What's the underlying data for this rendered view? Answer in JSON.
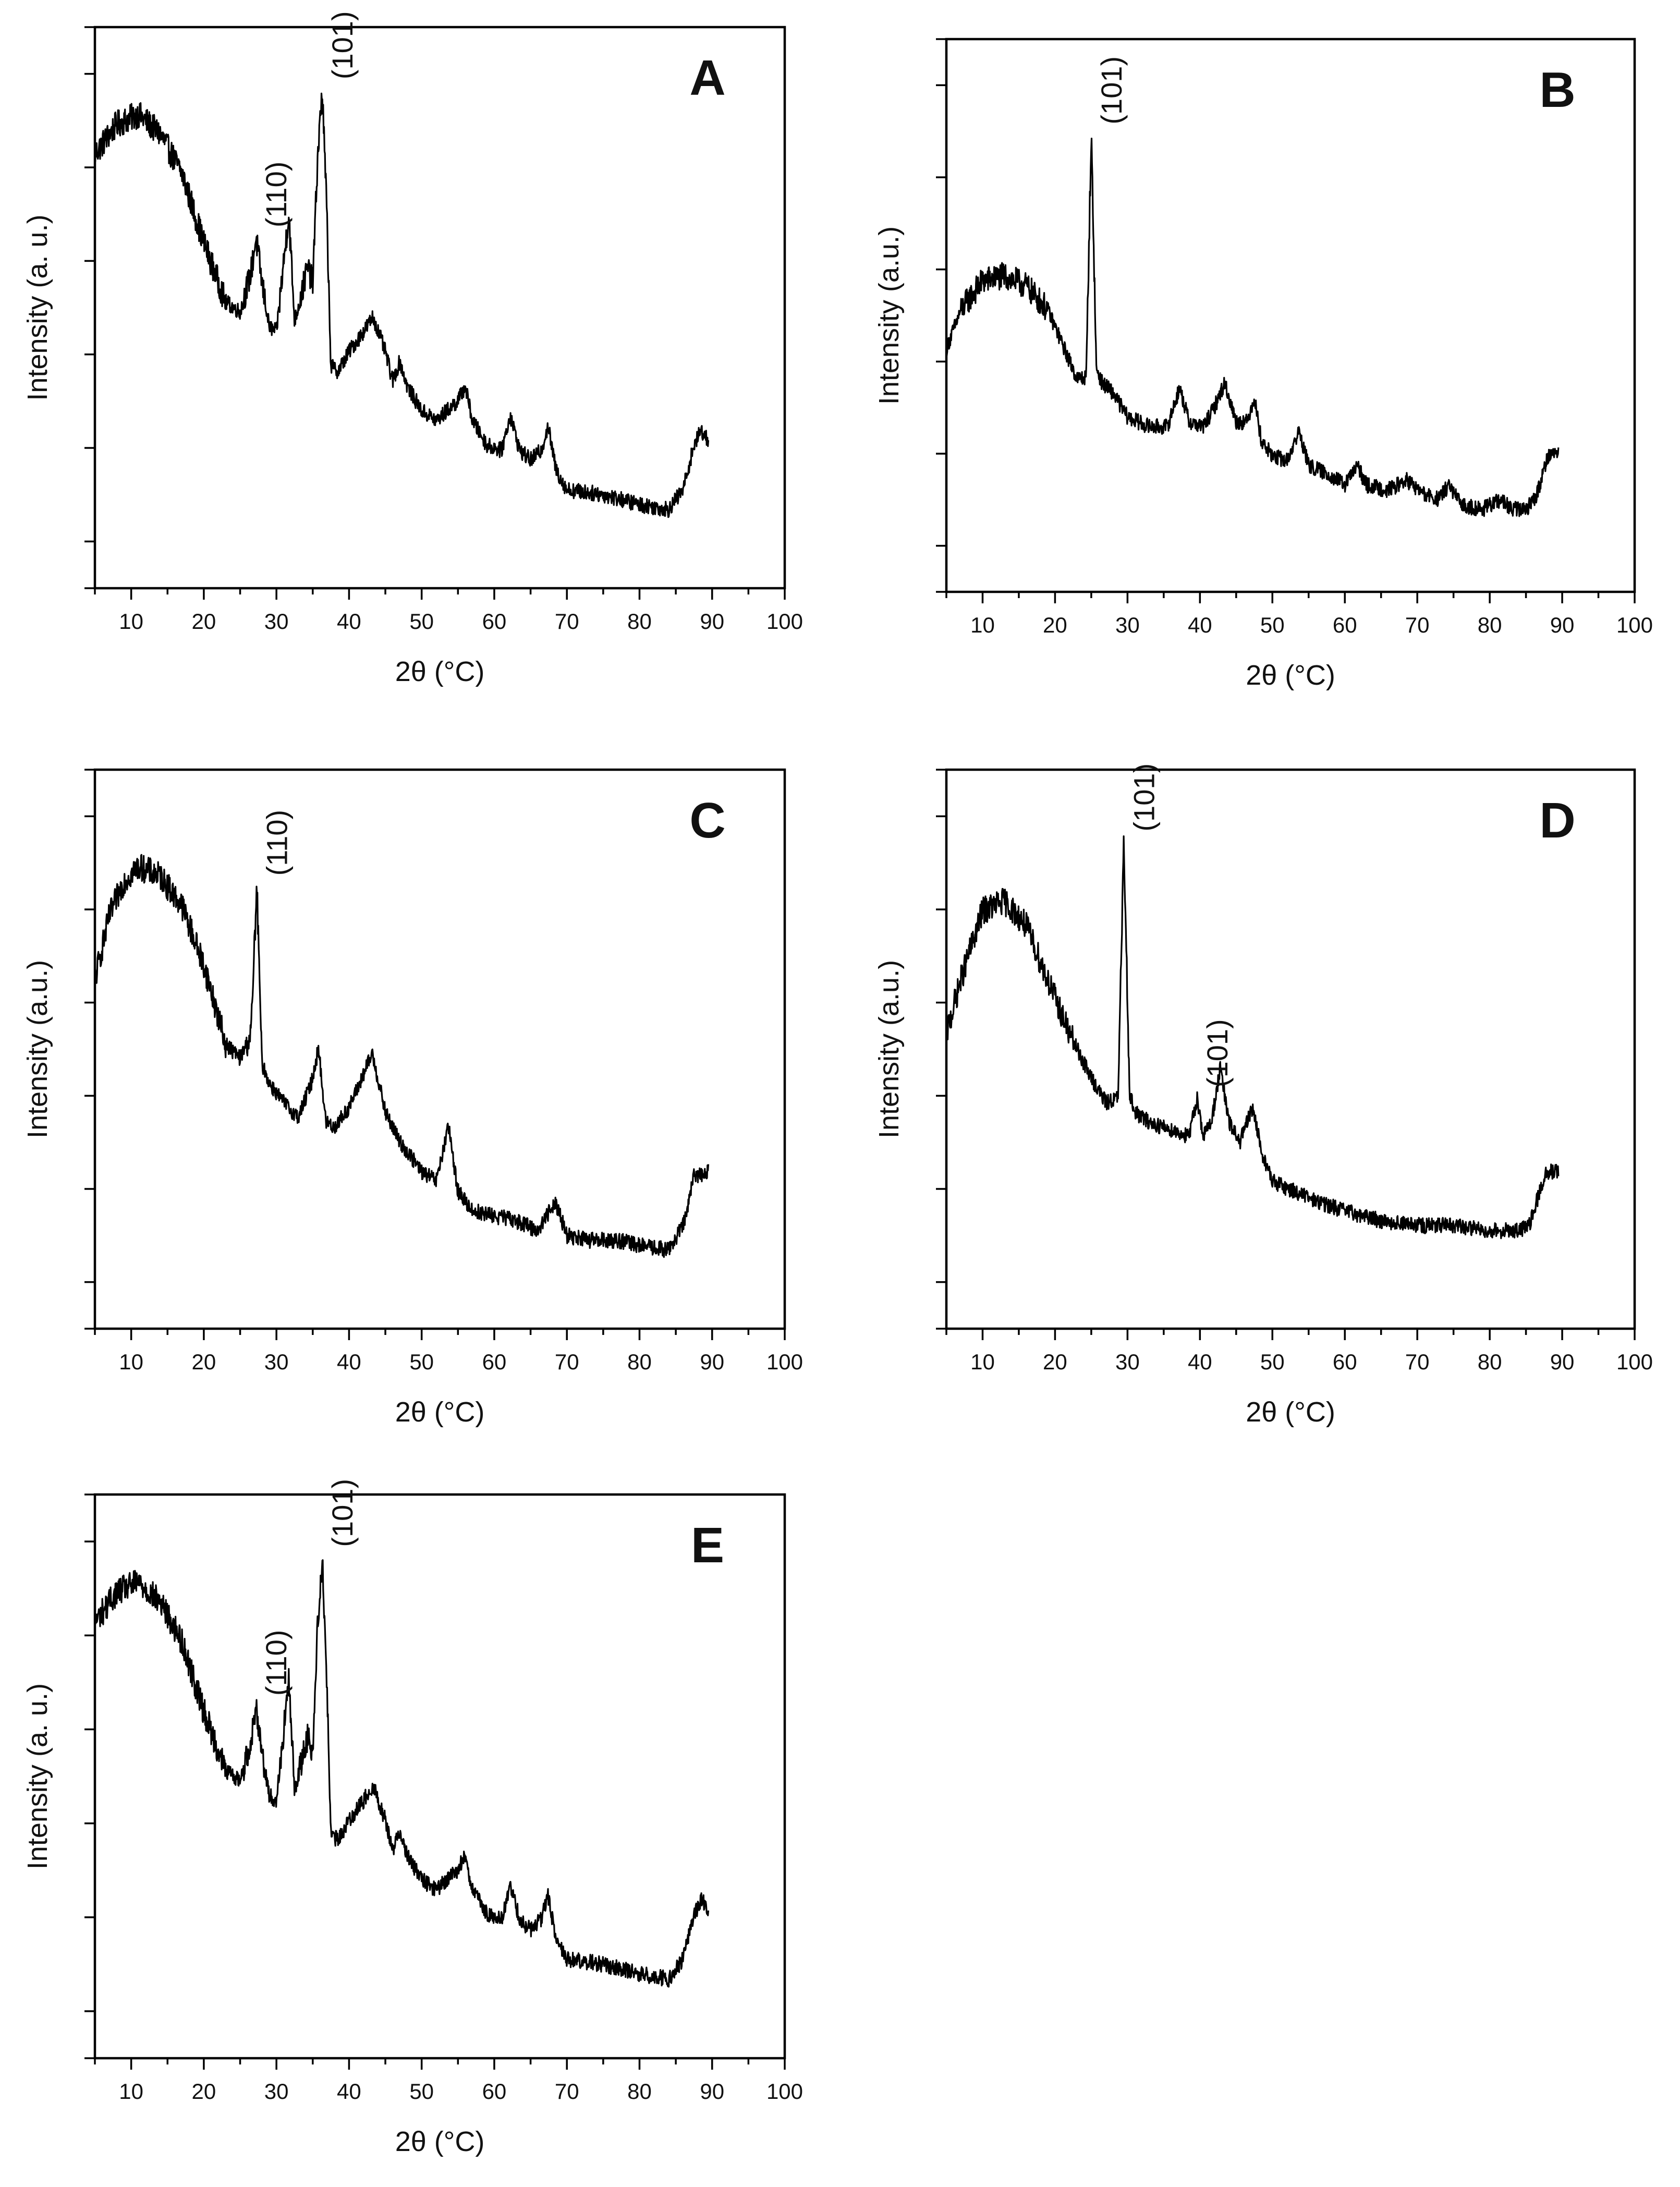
{
  "figure": {
    "background": "#ffffff",
    "line_color": "#000000"
  },
  "chart_data": [
    {
      "id": "A",
      "type": "line",
      "panel_label": "A",
      "xlabel": "2θ (°C)",
      "ylabel": "Intensity (a. u.)",
      "xlim": [
        5,
        100
      ],
      "ylim": [
        0,
        100
      ],
      "xticks": [
        "10",
        "20",
        "30",
        "40",
        "50",
        "60",
        "70",
        "80",
        "90",
        "100"
      ],
      "y_tick_labels": false,
      "series": [
        {
          "name": "A",
          "x": [
            5,
            8,
            11,
            14,
            17,
            20,
            23,
            25,
            26.5,
            27.2,
            28,
            29,
            30,
            31,
            31.7,
            32.5,
            33.5,
            34.3,
            35,
            35.7,
            36.3,
            36.9,
            37.5,
            38.5,
            40,
            42,
            43.3,
            45,
            46,
            47,
            48,
            50,
            52,
            53.5,
            55,
            56,
            57,
            59,
            61,
            62.2,
            63.5,
            65,
            66.5,
            67.4,
            68.5,
            70,
            75,
            80,
            84,
            86,
            87.5,
            88.5,
            89.5
          ],
          "y": [
            80,
            86,
            88,
            84,
            76,
            62,
            50,
            48,
            56,
            63,
            54,
            45,
            44,
            58,
            68,
            46,
            52,
            57,
            54,
            80,
            93,
            70,
            37,
            36,
            40,
            44,
            47,
            40,
            34,
            38,
            33,
            28,
            26,
            28,
            30,
            33,
            26,
            21,
            20,
            27,
            20,
            18,
            20,
            25,
            16,
            12,
            11,
            9,
            8,
            12,
            21,
            24,
            22
          ]
        }
      ],
      "annotations": [
        {
          "text": "(110)",
          "x": 27.2
        },
        {
          "text": "(101)",
          "x": 36.3
        }
      ]
    },
    {
      "id": "B",
      "type": "line",
      "panel_label": "B",
      "xlabel": "2θ (°C)",
      "ylabel": "Intensity (a.u.)",
      "xlim": [
        5,
        100
      ],
      "ylim": [
        0,
        100
      ],
      "xticks": [
        "10",
        "20",
        "30",
        "40",
        "50",
        "60",
        "70",
        "80",
        "90",
        "100"
      ],
      "y_tick_labels": false,
      "series": [
        {
          "name": "B",
          "x": [
            5,
            7,
            10,
            13,
            16,
            19,
            21,
            23,
            24.3,
            25,
            25.7,
            26.5,
            28,
            30,
            33,
            35.5,
            37.2,
            38.5,
            40.5,
            42,
            43.4,
            45,
            46.5,
            47.5,
            48.5,
            50,
            52,
            53.7,
            55,
            58,
            60,
            61.7,
            63,
            66,
            68.5,
            71,
            73,
            74.3,
            76,
            79,
            81.5,
            83,
            85,
            86.5,
            88,
            89.5
          ],
          "y": [
            42,
            50,
            56,
            57,
            55,
            50,
            43,
            36,
            36,
            86,
            38,
            35,
            33,
            28,
            26,
            26,
            34,
            27,
            26,
            30,
            35,
            27,
            27,
            32,
            23,
            20,
            19,
            25,
            18,
            16,
            14,
            18,
            14,
            13,
            15,
            12,
            11,
            14,
            10,
            9,
            11,
            9,
            9,
            12,
            20,
            21
          ]
        }
      ],
      "annotations": [
        {
          "text": "(101)",
          "x": 25
        }
      ]
    },
    {
      "id": "C",
      "type": "line",
      "panel_label": "C",
      "xlabel": "2θ (°C)",
      "ylabel": "Intensity (a.u.)",
      "xlim": [
        5,
        100
      ],
      "ylim": [
        0,
        100
      ],
      "xticks": [
        "10",
        "20",
        "30",
        "40",
        "50",
        "60",
        "70",
        "80",
        "90",
        "100"
      ],
      "y_tick_labels": false,
      "series": [
        {
          "name": "C",
          "x": [
            5,
            7,
            9,
            11,
            14,
            17,
            20,
            23,
            25,
            26.5,
            27.3,
            28,
            29,
            31,
            33,
            34.8,
            35.8,
            36.8,
            38,
            40,
            41.5,
            43.2,
            45,
            47,
            50,
            52,
            53.7,
            55,
            57,
            60,
            63,
            66,
            68.4,
            70,
            73,
            77,
            80,
            84,
            86,
            87.5,
            89.5
          ],
          "y": [
            63,
            76,
            83,
            86,
            84,
            78,
            66,
            50,
            47,
            52,
            82,
            46,
            42,
            38,
            35,
            42,
            49,
            34,
            33,
            37,
            42,
            48,
            36,
            30,
            24,
            22,
            33,
            20,
            16,
            15,
            14,
            12,
            18,
            11,
            10,
            10,
            9,
            8,
            13,
            23,
            24
          ]
        }
      ],
      "annotations": [
        {
          "text": "(110)",
          "x": 27.3
        }
      ]
    },
    {
      "id": "D",
      "type": "line",
      "panel_label": "D",
      "xlabel": "2θ (°C)",
      "ylabel": "Intensity (a.u.)",
      "xlim": [
        5,
        100
      ],
      "ylim": [
        0,
        100
      ],
      "xticks": [
        "10",
        "20",
        "30",
        "40",
        "50",
        "60",
        "70",
        "80",
        "90",
        "100"
      ],
      "y_tick_labels": false,
      "series": [
        {
          "name": "D",
          "x": [
            5,
            7,
            10,
            13,
            16,
            19,
            22,
            25,
            27,
            28.7,
            29.5,
            30.3,
            31,
            33,
            35,
            37,
            38.5,
            39.6,
            40.5,
            41.7,
            42.8,
            44,
            45.5,
            47.3,
            48.5,
            50,
            53,
            56,
            60,
            65,
            70,
            75,
            80,
            84,
            85.5,
            86.5,
            87.5,
            88.5,
            89.5
          ],
          "y": [
            52,
            63,
            77,
            79,
            74,
            63,
            52,
            43,
            38,
            39,
            91,
            40,
            36,
            34,
            33,
            32,
            31,
            39,
            31,
            35,
            45,
            34,
            30,
            37,
            28,
            22,
            20,
            18,
            16,
            14,
            13,
            13,
            12,
            12,
            13,
            18,
            23,
            24,
            24
          ]
        }
      ],
      "annotations": [
        {
          "text": "(101)",
          "x": 29.5
        },
        {
          "text": "(101)",
          "x": 39.6
        }
      ]
    },
    {
      "id": "E",
      "type": "line",
      "panel_label": "E",
      "xlabel": "2θ (°C)",
      "ylabel": "Intensity (a. u.)",
      "xlim": [
        5,
        100
      ],
      "ylim": [
        0,
        100
      ],
      "xticks": [
        "10",
        "20",
        "30",
        "40",
        "50",
        "60",
        "70",
        "80",
        "90",
        "100"
      ],
      "y_tick_labels": false,
      "series": [
        {
          "name": "E",
          "x": [
            5,
            8,
            11,
            14,
            17,
            20,
            23,
            25,
            26.5,
            27.2,
            28,
            29,
            30,
            31,
            31.7,
            32.5,
            33.5,
            34.3,
            35,
            35.7,
            36.3,
            36.9,
            37.5,
            38.5,
            40,
            42,
            43.3,
            45,
            46,
            47,
            48,
            50,
            52,
            53.5,
            55,
            56,
            57,
            59,
            61,
            62.2,
            63.5,
            65,
            66.5,
            67.4,
            68.5,
            70,
            75,
            80,
            84,
            86,
            87.5,
            88.5,
            89.5
          ],
          "y": [
            80,
            86,
            88,
            84,
            76,
            62,
            50,
            48,
            56,
            63,
            54,
            45,
            44,
            58,
            68,
            46,
            52,
            57,
            54,
            80,
            93,
            70,
            37,
            36,
            40,
            44,
            47,
            40,
            34,
            38,
            33,
            28,
            26,
            28,
            30,
            33,
            26,
            21,
            20,
            27,
            20,
            18,
            20,
            25,
            16,
            12,
            11,
            9,
            8,
            12,
            21,
            24,
            22
          ]
        }
      ],
      "annotations": [
        {
          "text": "(110)",
          "x": 27.2
        },
        {
          "text": "(101)",
          "x": 36.3
        }
      ]
    }
  ]
}
